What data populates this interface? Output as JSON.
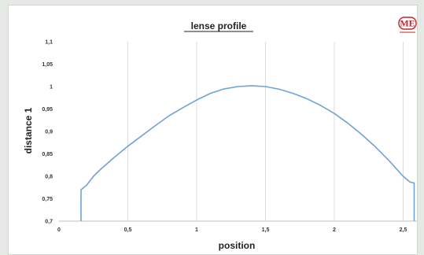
{
  "chart_data": {
    "type": "line",
    "title": "lense profile",
    "xlabel": "position",
    "ylabel": "distance 1",
    "xlim": [
      0,
      2.6
    ],
    "ylim": [
      0.7,
      1.1
    ],
    "xticks": [
      "0",
      "0,5",
      "1",
      "1,5",
      "2",
      "2,5"
    ],
    "xtick_values": [
      0,
      0.5,
      1,
      1.5,
      2,
      2.5
    ],
    "yticks": [
      "0,7",
      "0,75",
      "0,8",
      "0,85",
      "0,9",
      "0,95",
      "1",
      "1,05",
      "1,1"
    ],
    "ytick_values": [
      0.7,
      0.75,
      0.8,
      0.85,
      0.9,
      0.95,
      1.0,
      1.05,
      1.1
    ],
    "grid": "vertical",
    "legend": "none",
    "series": [
      {
        "color": "#6fa3d6",
        "points": [
          [
            0.16,
            0.7
          ],
          [
            0.16,
            0.77
          ],
          [
            0.18,
            0.775
          ],
          [
            0.2,
            0.78
          ],
          [
            0.25,
            0.8
          ],
          [
            0.3,
            0.815
          ],
          [
            0.4,
            0.842
          ],
          [
            0.5,
            0.867
          ],
          [
            0.6,
            0.89
          ],
          [
            0.7,
            0.913
          ],
          [
            0.8,
            0.935
          ],
          [
            0.9,
            0.953
          ],
          [
            1.0,
            0.97
          ],
          [
            1.1,
            0.985
          ],
          [
            1.2,
            0.995
          ],
          [
            1.3,
            1.0
          ],
          [
            1.4,
            1.002
          ],
          [
            1.5,
            1.0
          ],
          [
            1.6,
            0.994
          ],
          [
            1.7,
            0.985
          ],
          [
            1.8,
            0.973
          ],
          [
            1.9,
            0.958
          ],
          [
            2.0,
            0.94
          ],
          [
            2.1,
            0.918
          ],
          [
            2.2,
            0.893
          ],
          [
            2.3,
            0.865
          ],
          [
            2.4,
            0.834
          ],
          [
            2.5,
            0.8
          ],
          [
            2.55,
            0.787
          ],
          [
            2.58,
            0.785
          ],
          [
            2.58,
            0.7
          ]
        ]
      }
    ]
  },
  "logo": {
    "text": "ME",
    "color": "#c0282d"
  }
}
